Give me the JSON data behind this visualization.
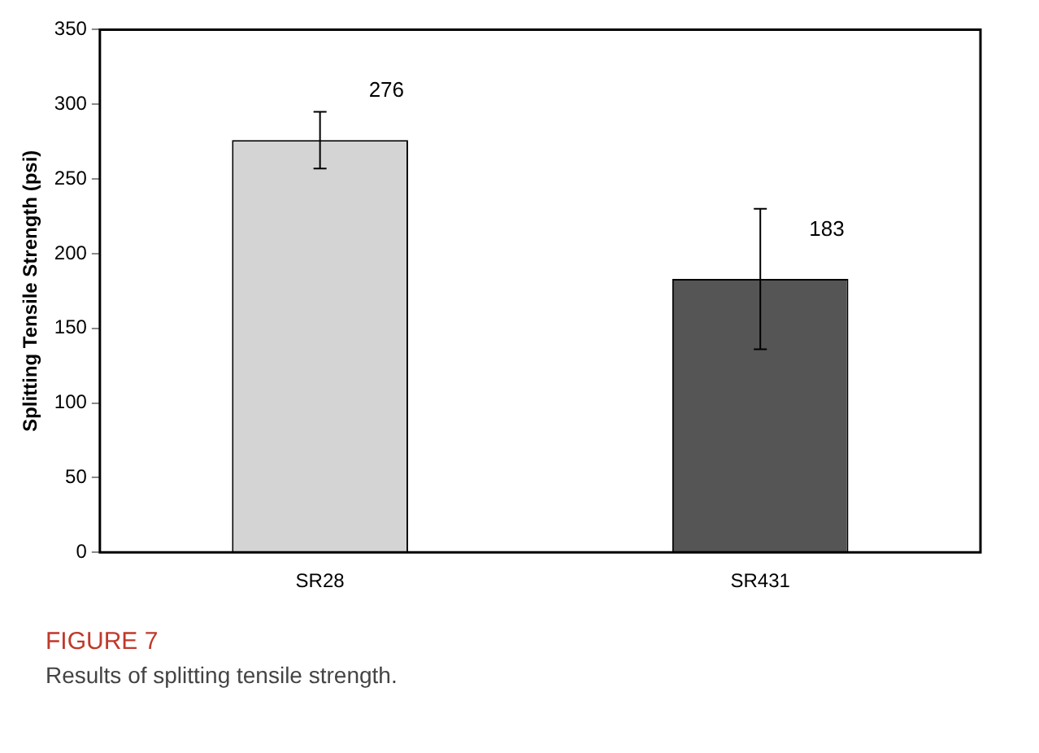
{
  "chart_data": {
    "type": "bar",
    "ylabel": "Splitting Tensile Strength (psi)",
    "categories": [
      "SR28",
      "SR431"
    ],
    "values": [
      276,
      183
    ],
    "colors": [
      "#d4d4d4",
      "#555555"
    ],
    "errors": [
      19,
      47
    ],
    "data_labels": true,
    "ylim": [
      0,
      350
    ],
    "yticks": [
      0,
      50,
      100,
      150,
      200,
      250,
      300,
      350
    ],
    "grid": false,
    "legend": false,
    "annotations": [
      "FIGURE 7",
      "Results of splitting tensile strength."
    ]
  }
}
